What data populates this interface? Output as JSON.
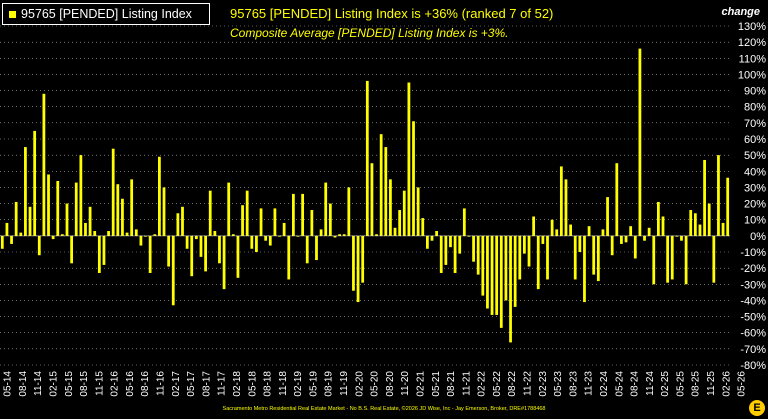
{
  "legend": {
    "label": "95765 [PENDED] Listing Index",
    "color": "#ffff00"
  },
  "headline": "95765 [PENDED] Listing Index is +36% (ranked 7 of 52)",
  "subline": "Composite Average [PENDED] Listing Index is +3%.",
  "axis_title": "change",
  "footer": "Sacramento Metro Residential Real Estate Market - No B.S. Real Estate, ©2026 JD Wise, Inc - Jay Emerson, Broker, DRE#1788468",
  "logo_letter": "E",
  "colors": {
    "bar": "#ffff00",
    "background": "#000000",
    "text": "#ffffff",
    "grid": "#ffffff"
  },
  "chart_data": {
    "type": "bar",
    "ylim": [
      -80,
      130
    ],
    "y_ticks": [
      130,
      120,
      110,
      100,
      90,
      80,
      70,
      60,
      50,
      40,
      30,
      20,
      10,
      0,
      -10,
      -20,
      -30,
      -40,
      -50,
      -60,
      -70,
      -80
    ],
    "y_tick_labels": [
      "130%",
      "120%",
      "110%",
      "100%",
      "90%",
      "80%",
      "70%",
      "60%",
      "50%",
      "40%",
      "30%",
      "20%",
      "10%",
      "0%",
      "-10%",
      "-20%",
      "-30%",
      "-40%",
      "-50%",
      "-60%",
      "-70%",
      "-80%"
    ],
    "x_tick_labels": [
      "05-14",
      "08-14",
      "11-14",
      "02-15",
      "05-15",
      "08-15",
      "11-15",
      "02-16",
      "05-16",
      "08-16",
      "11-16",
      "02-17",
      "05-17",
      "08-17",
      "11-17",
      "02-18",
      "05-18",
      "08-18",
      "11-18",
      "02-19",
      "05-19",
      "08-19",
      "11-19",
      "02-20",
      "05-20",
      "08-20",
      "11-20",
      "02-21",
      "05-21",
      "08-21",
      "11-21",
      "02-22",
      "05-22",
      "08-22",
      "11-22",
      "02-23",
      "05-23",
      "08-23",
      "11-23",
      "02-24",
      "05-24",
      "08-24",
      "11-24",
      "02-25",
      "05-25",
      "08-25",
      "11-25",
      "02-26",
      "05-26"
    ],
    "grid": true,
    "values": [
      -8,
      8,
      -5,
      21,
      2,
      55,
      18,
      65,
      -12,
      88,
      38,
      -2,
      34,
      1,
      20,
      -17,
      33,
      50,
      8,
      18,
      3,
      -23,
      -18,
      3,
      54,
      32,
      23,
      2,
      35,
      4,
      -6,
      0,
      -23,
      1,
      49,
      30,
      -19,
      -43,
      14,
      18,
      -8,
      -25,
      -2,
      -13,
      -22,
      28,
      3,
      -17,
      -33,
      33,
      1,
      -26,
      19,
      28,
      -8,
      -10,
      17,
      -3,
      -6,
      17,
      0,
      8,
      -27,
      26,
      0,
      26,
      -17,
      16,
      -15,
      4,
      33,
      20,
      -1,
      1,
      1,
      30,
      -34,
      -41,
      -29,
      96,
      45,
      1,
      63,
      55,
      35,
      5,
      16,
      28,
      95,
      71,
      30,
      11,
      -8,
      -3,
      3,
      -23,
      -18,
      -7,
      -23,
      -11,
      17,
      0,
      -16,
      -24,
      -37,
      -45,
      -49,
      -49,
      -57,
      -40,
      -66,
      -44,
      -27,
      -11,
      -19,
      12,
      -33,
      -5,
      -27,
      10,
      4,
      43,
      35,
      7,
      -27,
      -10,
      -41,
      6,
      -24,
      -28,
      4,
      24,
      -12,
      45,
      -5,
      -4,
      6,
      -14,
      116,
      -3,
      5,
      -30,
      21,
      12,
      -29,
      -27,
      0,
      -3,
      -30,
      16,
      14,
      7,
      47,
      20,
      -29,
      50,
      8,
      36
    ]
  }
}
